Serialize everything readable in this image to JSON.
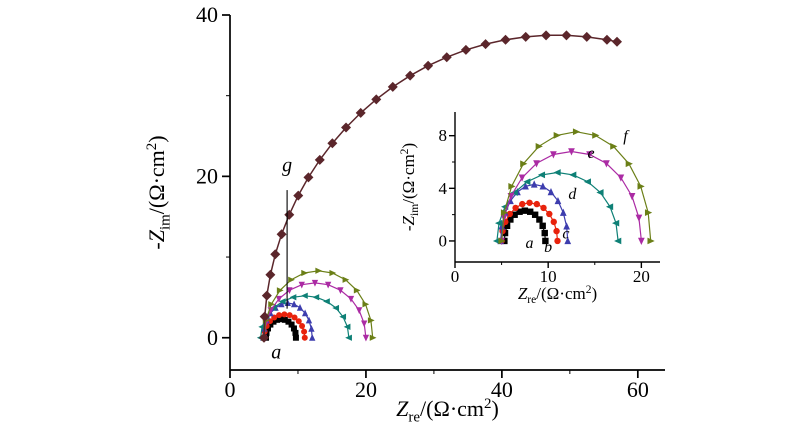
{
  "figure": {
    "background": "#ffffff",
    "axis_color": "#000000"
  },
  "chart_data": [
    {
      "id": "main",
      "type": "scatter",
      "title": "",
      "xlabel": {
        "prefix": "",
        "symbol": "Z",
        "subscript": "re",
        "unit": "/(Ω·cm",
        "superscript": "2",
        "suffix": ")"
      },
      "ylabel": {
        "prefix": "-",
        "symbol": "Z",
        "subscript": "im",
        "unit": "/(Ω·cm",
        "superscript": "2",
        "suffix": ")"
      },
      "xlim": [
        0,
        64
      ],
      "ylim": [
        -4,
        40
      ],
      "xticks": [
        0,
        20,
        40,
        60
      ],
      "yticks": [
        0,
        20,
        40
      ],
      "xminorticks": [
        10,
        30,
        50
      ],
      "yminorticks": [
        10,
        30
      ],
      "grid": false,
      "legend": "none",
      "series": [
        {
          "name": "a",
          "color": "#000000",
          "marker": "square",
          "points": [
            [
              5.3,
              0
            ],
            [
              5.37,
              0.6
            ],
            [
              5.59,
              1.15
            ],
            [
              5.94,
              1.63
            ],
            [
              6.4,
              1.99
            ],
            [
              6.93,
              2.22
            ],
            [
              7.5,
              2.3
            ],
            [
              8.07,
              2.22
            ],
            [
              8.6,
              1.99
            ],
            [
              9.06,
              1.63
            ],
            [
              9.41,
              1.15
            ],
            [
              9.63,
              0.6
            ],
            [
              9.7,
              0
            ]
          ]
        },
        {
          "name": "b",
          "color": "#e8220c",
          "marker": "circle",
          "points": [
            [
              5.0,
              0
            ],
            [
              5.1,
              0.75
            ],
            [
              5.4,
              1.45
            ],
            [
              5.88,
              2.05
            ],
            [
              6.5,
              2.51
            ],
            [
              7.22,
              2.8
            ],
            [
              8.0,
              2.9
            ],
            [
              8.78,
              2.8
            ],
            [
              9.5,
              2.51
            ],
            [
              10.12,
              2.05
            ],
            [
              10.6,
              1.45
            ],
            [
              10.9,
              0.75
            ],
            [
              11.0,
              0
            ]
          ]
        },
        {
          "name": "c",
          "color": "#3d3dae",
          "marker": "triangle-up",
          "points": [
            [
              4.9,
              0
            ],
            [
              5.02,
              1.11
            ],
            [
              5.38,
              2.15
            ],
            [
              5.95,
              3.04
            ],
            [
              6.7,
              3.72
            ],
            [
              7.57,
              4.15
            ],
            [
              8.5,
              4.3
            ],
            [
              9.43,
              4.15
            ],
            [
              10.3,
              3.72
            ],
            [
              11.05,
              3.04
            ],
            [
              11.62,
              2.15
            ],
            [
              11.98,
              1.11
            ],
            [
              12.1,
              0
            ]
          ]
        },
        {
          "name": "d",
          "color": "#0e8076",
          "marker": "triangle-left",
          "points": [
            [
              4.5,
              0
            ],
            [
              4.72,
              1.35
            ],
            [
              5.37,
              2.6
            ],
            [
              6.4,
              3.68
            ],
            [
              7.75,
              4.5
            ],
            [
              9.32,
              5.02
            ],
            [
              11.0,
              5.2
            ],
            [
              12.68,
              5.02
            ],
            [
              14.25,
              4.5
            ],
            [
              15.6,
              3.68
            ],
            [
              16.63,
              2.6
            ],
            [
              17.28,
              1.35
            ],
            [
              17.5,
              0
            ]
          ]
        },
        {
          "name": "e",
          "color": "#ab2ba4",
          "marker": "triangle-down",
          "points": [
            [
              5.0,
              0
            ],
            [
              5.26,
              1.76
            ],
            [
              6.0,
              3.4
            ],
            [
              7.2,
              4.81
            ],
            [
              8.75,
              5.89
            ],
            [
              10.56,
              6.57
            ],
            [
              12.5,
              6.8
            ],
            [
              14.44,
              6.57
            ],
            [
              16.25,
              5.89
            ],
            [
              17.8,
              4.81
            ],
            [
              19.0,
              3.4
            ],
            [
              19.74,
              1.76
            ],
            [
              20.0,
              0
            ]
          ]
        },
        {
          "name": "f",
          "color": "#6b7f17",
          "marker": "triangle-right",
          "points": [
            [
              5.0,
              0
            ],
            [
              5.27,
              2.15
            ],
            [
              6.07,
              4.15
            ],
            [
              7.34,
              5.87
            ],
            [
              9.0,
              7.19
            ],
            [
              10.93,
              8.02
            ],
            [
              13.0,
              8.3
            ],
            [
              15.07,
              8.02
            ],
            [
              17.0,
              7.19
            ],
            [
              18.66,
              5.87
            ],
            [
              19.93,
              4.15
            ],
            [
              20.73,
              2.15
            ],
            [
              21.0,
              0
            ]
          ]
        },
        {
          "name": "g",
          "color": "#5b262b",
          "marker": "diamond",
          "points": [
            [
              5.0,
              0
            ],
            [
              5.1,
              2.62
            ],
            [
              5.42,
              5.22
            ],
            [
              5.94,
              7.8
            ],
            [
              6.66,
              10.34
            ],
            [
              7.59,
              12.83
            ],
            [
              8.72,
              15.25
            ],
            [
              10.04,
              17.61
            ],
            [
              11.54,
              19.87
            ],
            [
              13.21,
              22.04
            ],
            [
              15.06,
              24.11
            ],
            [
              17.07,
              26.05
            ],
            [
              19.23,
              27.87
            ],
            [
              21.52,
              29.55
            ],
            [
              23.95,
              31.09
            ],
            [
              26.5,
              32.48
            ],
            [
              29.15,
              33.71
            ],
            [
              31.89,
              34.77
            ],
            [
              34.71,
              35.67
            ],
            [
              37.6,
              36.39
            ],
            [
              40.54,
              36.93
            ],
            [
              43.51,
              37.29
            ],
            [
              46.5,
              37.48
            ],
            [
              49.5,
              37.48
            ],
            [
              52.49,
              37.29
            ],
            [
              55.46,
              36.93
            ],
            [
              56.94,
              36.68
            ]
          ]
        }
      ],
      "annotations": [
        {
          "text": "g",
          "x": 8.4,
          "y": 20.6,
          "leader": {
            "x": 8.4,
            "y1": 18.3,
            "y2": 3.6
          }
        },
        {
          "text": "a",
          "x": 6.8,
          "y": -2.6
        }
      ]
    },
    {
      "id": "inset",
      "type": "scatter",
      "title": "",
      "xlabel": {
        "prefix": "",
        "symbol": "Z",
        "subscript": "re",
        "unit": "/(Ω·cm",
        "superscript": "2",
        "suffix": ")"
      },
      "ylabel": {
        "prefix": "-",
        "symbol": "Z",
        "subscript": "im",
        "unit": "/(Ω·cm",
        "superscript": "2",
        "suffix": ")"
      },
      "xlim": [
        0,
        22
      ],
      "ylim": [
        -1.6,
        9.8
      ],
      "xticks": [
        0,
        10,
        20
      ],
      "yticks": [
        0,
        4,
        8
      ],
      "xminorticks": [
        5,
        15
      ],
      "yminorticks": [
        2,
        6
      ],
      "grid": false,
      "legend": "none",
      "series": [
        {
          "name": "a",
          "color": "#000000",
          "marker": "square",
          "points": [
            [
              5.3,
              0
            ],
            [
              5.37,
              0.6
            ],
            [
              5.59,
              1.15
            ],
            [
              5.94,
              1.63
            ],
            [
              6.4,
              1.99
            ],
            [
              6.93,
              2.22
            ],
            [
              7.5,
              2.3
            ],
            [
              8.07,
              2.22
            ],
            [
              8.6,
              1.99
            ],
            [
              9.06,
              1.63
            ],
            [
              9.41,
              1.15
            ],
            [
              9.63,
              0.6
            ],
            [
              9.7,
              0
            ]
          ]
        },
        {
          "name": "b",
          "color": "#e8220c",
          "marker": "circle",
          "points": [
            [
              5.0,
              0
            ],
            [
              5.1,
              0.75
            ],
            [
              5.4,
              1.45
            ],
            [
              5.88,
              2.05
            ],
            [
              6.5,
              2.51
            ],
            [
              7.22,
              2.8
            ],
            [
              8.0,
              2.9
            ],
            [
              8.78,
              2.8
            ],
            [
              9.5,
              2.51
            ],
            [
              10.12,
              2.05
            ],
            [
              10.6,
              1.45
            ],
            [
              10.9,
              0.75
            ],
            [
              11.0,
              0
            ]
          ]
        },
        {
          "name": "c",
          "color": "#3d3dae",
          "marker": "triangle-up",
          "points": [
            [
              4.9,
              0
            ],
            [
              5.02,
              1.11
            ],
            [
              5.38,
              2.15
            ],
            [
              5.95,
              3.04
            ],
            [
              6.7,
              3.72
            ],
            [
              7.57,
              4.15
            ],
            [
              8.5,
              4.3
            ],
            [
              9.43,
              4.15
            ],
            [
              10.3,
              3.72
            ],
            [
              11.05,
              3.04
            ],
            [
              11.62,
              2.15
            ],
            [
              11.98,
              1.11
            ],
            [
              12.1,
              0
            ]
          ]
        },
        {
          "name": "d",
          "color": "#0e8076",
          "marker": "triangle-left",
          "points": [
            [
              4.5,
              0
            ],
            [
              4.72,
              1.35
            ],
            [
              5.37,
              2.6
            ],
            [
              6.4,
              3.68
            ],
            [
              7.75,
              4.5
            ],
            [
              9.32,
              5.02
            ],
            [
              11.0,
              5.2
            ],
            [
              12.68,
              5.02
            ],
            [
              14.25,
              4.5
            ],
            [
              15.6,
              3.68
            ],
            [
              16.63,
              2.6
            ],
            [
              17.28,
              1.35
            ],
            [
              17.5,
              0
            ]
          ]
        },
        {
          "name": "e",
          "color": "#ab2ba4",
          "marker": "triangle-down",
          "points": [
            [
              5.0,
              0
            ],
            [
              5.26,
              1.76
            ],
            [
              6.0,
              3.4
            ],
            [
              7.2,
              4.81
            ],
            [
              8.75,
              5.89
            ],
            [
              10.56,
              6.57
            ],
            [
              12.5,
              6.8
            ],
            [
              14.44,
              6.57
            ],
            [
              16.25,
              5.89
            ],
            [
              17.8,
              4.81
            ],
            [
              19.0,
              3.4
            ],
            [
              19.74,
              1.76
            ],
            [
              20.0,
              0
            ]
          ]
        },
        {
          "name": "f",
          "color": "#6b7f17",
          "marker": "triangle-right",
          "points": [
            [
              5.0,
              0
            ],
            [
              5.27,
              2.15
            ],
            [
              6.07,
              4.15
            ],
            [
              7.34,
              5.87
            ],
            [
              9.0,
              7.19
            ],
            [
              10.93,
              8.02
            ],
            [
              13.0,
              8.3
            ],
            [
              15.07,
              8.02
            ],
            [
              17.0,
              7.19
            ],
            [
              18.66,
              5.87
            ],
            [
              19.93,
              4.15
            ],
            [
              20.73,
              2.15
            ],
            [
              21.0,
              0
            ]
          ]
        }
      ],
      "annotations": [
        {
          "text": "a",
          "x": 8.0,
          "y": -0.55
        },
        {
          "text": "b",
          "x": 10.0,
          "y": -0.85
        },
        {
          "text": "c",
          "x": 11.9,
          "y": 0.2
        },
        {
          "text": "d",
          "x": 12.6,
          "y": 3.2
        },
        {
          "text": "e",
          "x": 14.6,
          "y": 6.3
        },
        {
          "text": "f",
          "x": 18.3,
          "y": 7.6
        }
      ]
    }
  ]
}
